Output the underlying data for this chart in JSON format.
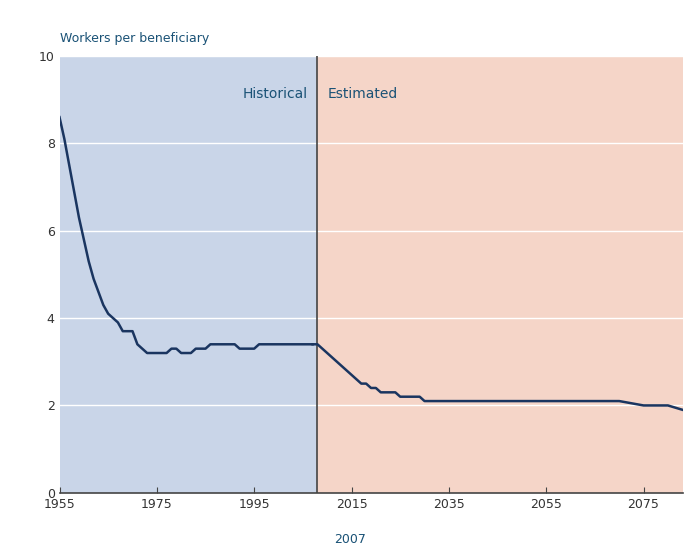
{
  "ylabel": "Workers per beneficiary",
  "xlabel": "2007",
  "ylim": [
    0,
    10
  ],
  "xlim": [
    1955,
    2083
  ],
  "xticks": [
    1955,
    1975,
    1995,
    2015,
    2035,
    2055,
    2075
  ],
  "yticks": [
    0,
    2,
    4,
    6,
    8,
    10
  ],
  "divider_year": 2008,
  "historical_label": "Historical",
  "estimated_label": "Estimated",
  "historical_bg": "#c9d5e8",
  "estimated_bg": "#f5d5c8",
  "line_color": "#1a3560",
  "line_width": 1.8,
  "grid_color": "#ffffff",
  "historical_data": {
    "years": [
      1955,
      1956,
      1957,
      1958,
      1959,
      1960,
      1961,
      1962,
      1963,
      1964,
      1965,
      1966,
      1967,
      1968,
      1969,
      1970,
      1971,
      1972,
      1973,
      1974,
      1975,
      1976,
      1977,
      1978,
      1979,
      1980,
      1981,
      1982,
      1983,
      1984,
      1985,
      1986,
      1987,
      1988,
      1989,
      1990,
      1991,
      1992,
      1993,
      1994,
      1995,
      1996,
      1997,
      1998,
      1999,
      2000,
      2001,
      2002,
      2003,
      2004,
      2005,
      2006,
      2007
    ],
    "values": [
      8.6,
      8.1,
      7.5,
      6.9,
      6.3,
      5.8,
      5.3,
      4.9,
      4.6,
      4.3,
      4.1,
      4.0,
      3.9,
      3.7,
      3.7,
      3.7,
      3.4,
      3.3,
      3.2,
      3.2,
      3.2,
      3.2,
      3.2,
      3.3,
      3.3,
      3.2,
      3.2,
      3.2,
      3.3,
      3.3,
      3.3,
      3.4,
      3.4,
      3.4,
      3.4,
      3.4,
      3.4,
      3.3,
      3.3,
      3.3,
      3.3,
      3.4,
      3.4,
      3.4,
      3.4,
      3.4,
      3.4,
      3.4,
      3.4,
      3.4,
      3.4,
      3.4,
      3.4
    ]
  },
  "estimated_data": {
    "years": [
      2007,
      2008,
      2009,
      2010,
      2011,
      2012,
      2013,
      2014,
      2015,
      2016,
      2017,
      2018,
      2019,
      2020,
      2021,
      2022,
      2023,
      2024,
      2025,
      2026,
      2027,
      2028,
      2029,
      2030,
      2031,
      2032,
      2033,
      2034,
      2035,
      2036,
      2037,
      2038,
      2039,
      2040,
      2041,
      2042,
      2043,
      2044,
      2045,
      2046,
      2047,
      2048,
      2049,
      2050,
      2051,
      2052,
      2053,
      2054,
      2055,
      2056,
      2057,
      2058,
      2059,
      2060,
      2061,
      2062,
      2063,
      2064,
      2065,
      2066,
      2067,
      2068,
      2069,
      2070,
      2075,
      2080,
      2083
    ],
    "values": [
      3.4,
      3.4,
      3.3,
      3.2,
      3.1,
      3.0,
      2.9,
      2.8,
      2.7,
      2.6,
      2.5,
      2.5,
      2.4,
      2.4,
      2.3,
      2.3,
      2.3,
      2.3,
      2.2,
      2.2,
      2.2,
      2.2,
      2.2,
      2.1,
      2.1,
      2.1,
      2.1,
      2.1,
      2.1,
      2.1,
      2.1,
      2.1,
      2.1,
      2.1,
      2.1,
      2.1,
      2.1,
      2.1,
      2.1,
      2.1,
      2.1,
      2.1,
      2.1,
      2.1,
      2.1,
      2.1,
      2.1,
      2.1,
      2.1,
      2.1,
      2.1,
      2.1,
      2.1,
      2.1,
      2.1,
      2.1,
      2.1,
      2.1,
      2.1,
      2.1,
      2.1,
      2.1,
      2.1,
      2.1,
      2.0,
      2.0,
      1.9
    ]
  },
  "label_color": "#1a5276",
  "tick_color": "#333333"
}
